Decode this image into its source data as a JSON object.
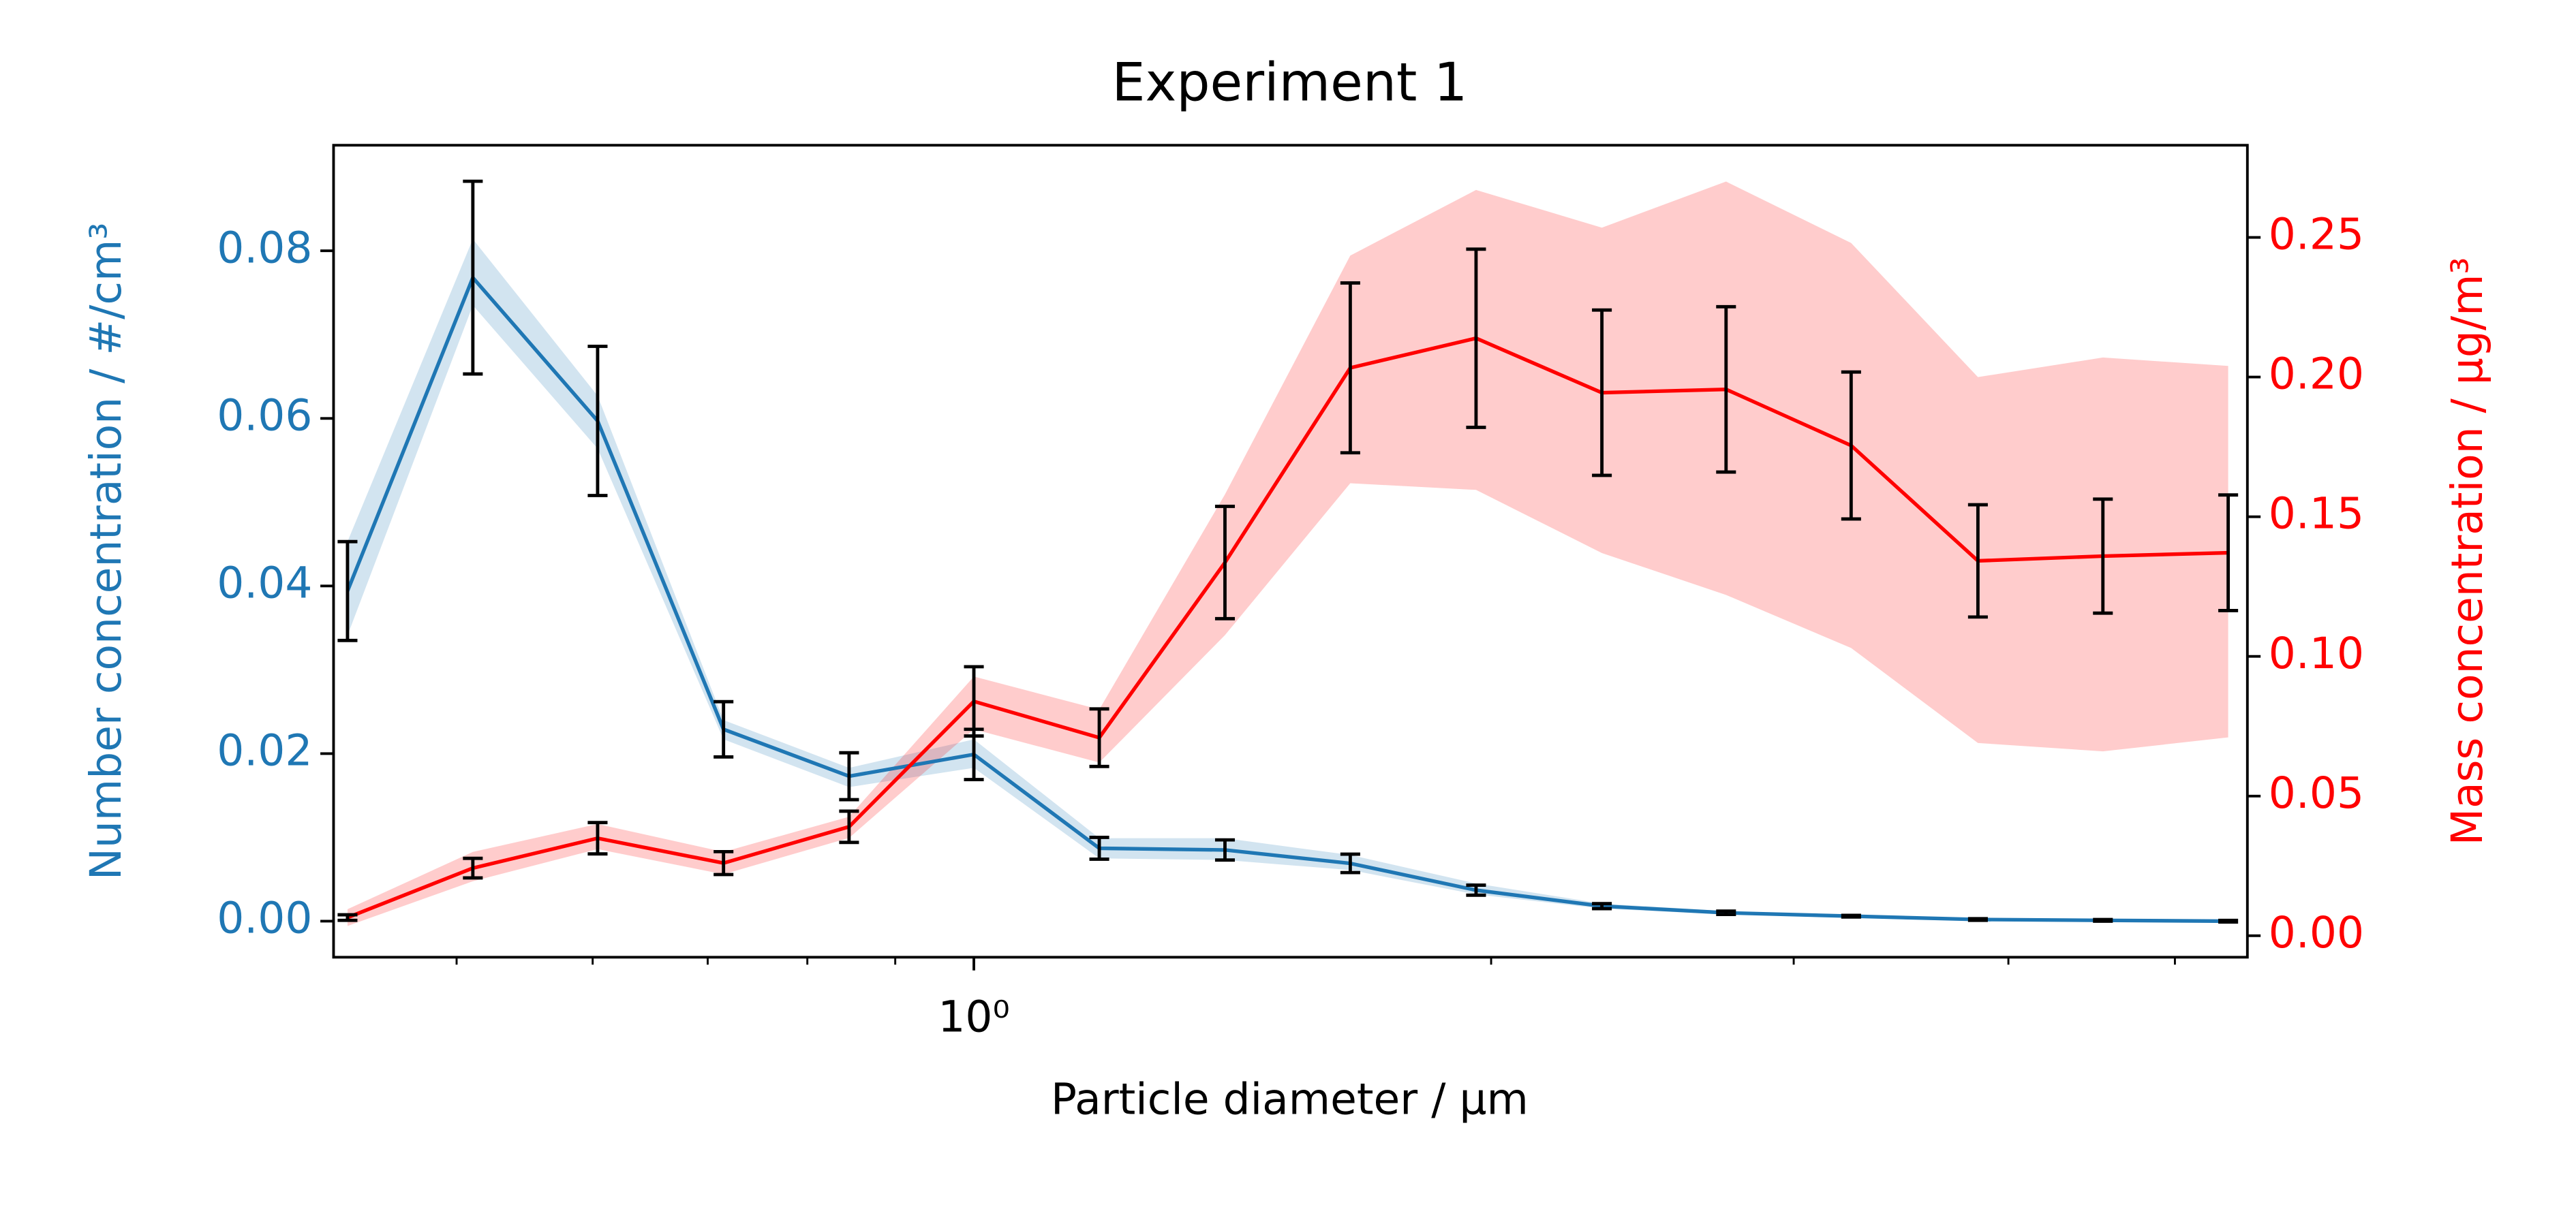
{
  "chart_data": {
    "type": "line",
    "title": "Experiment 1",
    "xlabel": "Particle diameter / μm",
    "ylabel": "Number concentration / #/cm³",
    "y2label": "Mass concentration / μg/m³",
    "xscale": "log",
    "x": [
      0.432,
      0.511,
      0.604,
      0.715,
      0.846,
      1.0,
      1.183,
      1.4,
      1.656,
      1.96,
      2.32,
      2.74,
      3.24,
      3.84,
      4.54,
      5.37
    ],
    "xlim": [
      0.424,
      5.51
    ],
    "xticks": [
      {
        "value": 1,
        "label": "10⁰"
      }
    ],
    "xminorticks": [
      0.5,
      0.6,
      0.7,
      0.8,
      0.9,
      2,
      3,
      4,
      5
    ],
    "ylim": [
      -0.0043,
      0.0926
    ],
    "yticks": [
      {
        "value": 0,
        "label": "0.00"
      },
      {
        "value": 0.02,
        "label": "0.02"
      },
      {
        "value": 0.04,
        "label": "0.04"
      },
      {
        "value": 0.06,
        "label": "0.06"
      },
      {
        "value": 0.08,
        "label": "0.08"
      }
    ],
    "y2lim": [
      -0.0077,
      0.283
    ],
    "y2ticks": [
      {
        "value": 0,
        "label": "0.00"
      },
      {
        "value": 0.05,
        "label": "0.05"
      },
      {
        "value": 0.1,
        "label": "0.10"
      },
      {
        "value": 0.15,
        "label": "0.15"
      },
      {
        "value": 0.2,
        "label": "0.20"
      },
      {
        "value": 0.25,
        "label": "0.25"
      }
    ],
    "errorbar_color": "#000000",
    "series": [
      {
        "color": "#1f77b4",
        "axis": "y",
        "values": [
          0.0394,
          0.0768,
          0.0597,
          0.0229,
          0.0173,
          0.0199,
          0.0087,
          0.0085,
          0.0069,
          0.0037,
          0.0018,
          0.001,
          0.0006,
          0.0002,
          0.0001,
          0.0
        ],
        "errors": [
          0.0059,
          0.0115,
          0.0089,
          0.0033,
          0.0028,
          0.003,
          0.0013,
          0.0012,
          0.0011,
          0.0006,
          0.0003,
          0.0002,
          0.0001,
          0.0001,
          0.0001,
          0.0001
        ],
        "band_lower": [
          0.0341,
          0.0735,
          0.0564,
          0.0217,
          0.016,
          0.0183,
          0.0075,
          0.0073,
          0.0061,
          0.0032,
          0.0015,
          0.0008,
          0.0005,
          0.0001,
          0,
          0
        ],
        "band_upper": [
          0.0453,
          0.0814,
          0.0627,
          0.024,
          0.0183,
          0.0217,
          0.0099,
          0.0099,
          0.0079,
          0.0045,
          0.0021,
          0.0012,
          0.0007,
          0.0003,
          0.0002,
          0.0001
        ]
      },
      {
        "color": "#ff0000",
        "axis": "y2",
        "values": [
          0.0065,
          0.0242,
          0.0349,
          0.026,
          0.039,
          0.0839,
          0.0709,
          0.1336,
          0.2033,
          0.2139,
          0.1944,
          0.1956,
          0.1755,
          0.1342,
          0.1359,
          0.1371
        ],
        "errors": [
          0.001,
          0.0035,
          0.0056,
          0.0041,
          0.0056,
          0.0124,
          0.0103,
          0.0201,
          0.0304,
          0.0319,
          0.0296,
          0.0296,
          0.0263,
          0.0201,
          0.0204,
          0.0207
        ],
        "band_lower": [
          0.0035,
          0.0195,
          0.031,
          0.022,
          0.035,
          0.0739,
          0.062,
          0.1076,
          0.162,
          0.1596,
          0.137,
          0.122,
          0.103,
          0.069,
          0.066,
          0.071
        ],
        "band_upper": [
          0.0095,
          0.03,
          0.04,
          0.03,
          0.0426,
          0.0928,
          0.081,
          0.158,
          0.2435,
          0.267,
          0.2535,
          0.27,
          0.248,
          0.2,
          0.207,
          0.204
        ]
      }
    ]
  }
}
